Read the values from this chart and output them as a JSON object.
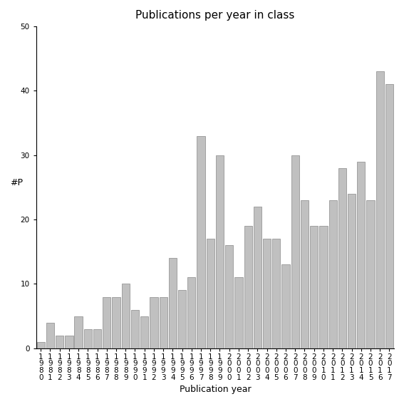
{
  "title": "Publications per year in class",
  "xlabel": "Publication year",
  "ylabel": "#P",
  "years": [
    1980,
    1981,
    1982,
    1983,
    1984,
    1985,
    1986,
    1987,
    1988,
    1989,
    1990,
    1991,
    1992,
    1993,
    1994,
    1995,
    1996,
    1997,
    1998,
    1999,
    2000,
    2001,
    2002,
    2003,
    2004,
    2005,
    2006,
    2007,
    2008,
    2009,
    2010,
    2011,
    2012,
    2013,
    2014,
    2015,
    2016,
    2017
  ],
  "values": [
    1,
    4,
    2,
    2,
    5,
    3,
    3,
    8,
    8,
    10,
    6,
    5,
    8,
    8,
    14,
    9,
    11,
    33,
    17,
    30,
    16,
    11,
    19,
    22,
    17,
    17,
    13,
    30,
    23,
    19,
    19,
    23,
    28,
    24,
    29,
    23,
    43,
    41
  ],
  "bar_color": "#c0c0c0",
  "bar_edgecolor": "#888888",
  "ylim": [
    0,
    50
  ],
  "yticks": [
    0,
    10,
    20,
    30,
    40,
    50
  ],
  "title_fontsize": 11,
  "label_fontsize": 9,
  "tick_fontsize": 7.5,
  "background_color": "#ffffff"
}
